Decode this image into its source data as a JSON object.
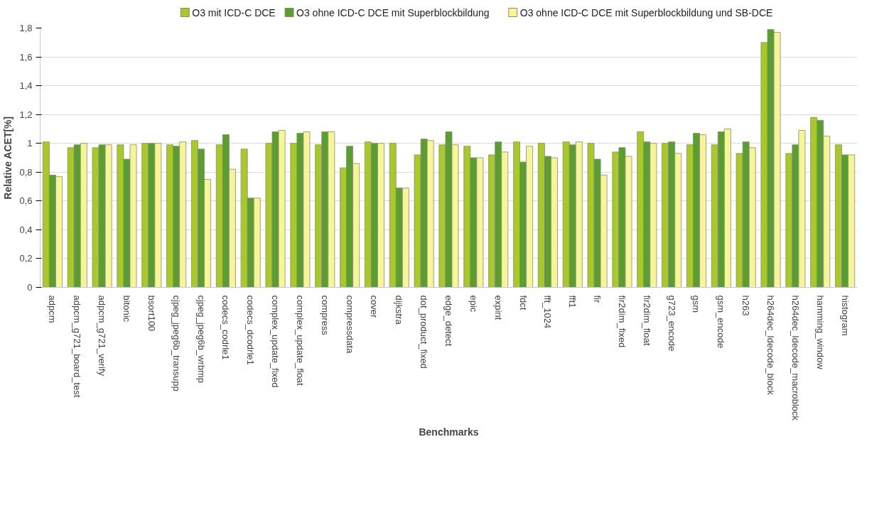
{
  "chart_data": {
    "type": "bar",
    "xlabel": "Benchmarks",
    "ylabel": "Relative ACET[%]",
    "categories": [
      "adpcm",
      "adpcm_g721_board_test",
      "adpcm_g721_verify",
      "bitonic",
      "bsort100",
      "cjpeg_jpeg6b_transupp",
      "cjpeg_jpeg6b_wrbmp",
      "codecs_codrle1",
      "codecs_dcodrle1",
      "complex_update_fixed",
      "complex_update_float",
      "compress",
      "compressdata",
      "cover",
      "dijkstra",
      "dot_product_fixed",
      "edge_detect",
      "epic",
      "expint",
      "fdct",
      "fft_1024",
      "fft1",
      "fir",
      "fir2dim_fixed",
      "fir2dim_float",
      "g723_encode",
      "gsm",
      "gsm_encode",
      "h263",
      "h264dec_ldecode_block",
      "h264dec_ldecode_macroblock",
      "hamming_window",
      "histogram"
    ],
    "series": [
      {
        "name": "O3 mit ICD-C DCE",
        "color": "#a9c92a",
        "values": [
          1.01,
          0.97,
          0.97,
          0.99,
          1.0,
          0.99,
          1.02,
          0.99,
          0.96,
          1.0,
          1.0,
          0.99,
          0.83,
          1.01,
          1.0,
          0.92,
          0.99,
          0.98,
          0.92,
          1.01,
          1.0,
          1.01,
          1.0,
          0.94,
          1.08,
          1.0,
          0.99,
          0.99,
          0.93,
          1.7,
          0.93,
          1.18,
          0.99
        ]
      },
      {
        "name": "O3 ohne ICD-C DCE mit Superblockbildung",
        "color": "#5a9e32",
        "values": [
          0.78,
          0.99,
          0.99,
          0.89,
          1.0,
          0.98,
          0.96,
          1.06,
          0.62,
          1.08,
          1.07,
          1.08,
          0.98,
          1.0,
          0.69,
          1.03,
          1.08,
          0.9,
          1.01,
          0.87,
          0.91,
          0.99,
          0.89,
          0.97,
          1.01,
          1.01,
          1.07,
          1.08,
          1.01,
          1.79,
          0.99,
          1.16,
          0.92
        ]
      },
      {
        "name": "O3 ohne ICD-C DCE mit Superblockbildung und SB-DCE",
        "color": "#f7f599",
        "values": [
          0.77,
          1.0,
          0.99,
          0.99,
          1.0,
          1.01,
          0.75,
          0.82,
          0.62,
          1.09,
          1.08,
          1.08,
          0.86,
          1.0,
          0.69,
          1.02,
          0.99,
          0.9,
          0.94,
          0.98,
          0.9,
          1.01,
          0.78,
          0.91,
          1.0,
          0.93,
          1.06,
          1.1,
          0.97,
          1.77,
          1.09,
          1.05,
          0.92
        ]
      }
    ],
    "ylim": [
      0,
      1.8
    ],
    "yticks": [
      0,
      {
        "value": 0.2,
        "label": "0,2"
      },
      {
        "value": 0.4,
        "label": "0,4"
      },
      {
        "value": 0.6,
        "label": "0,6"
      },
      {
        "value": 0.8,
        "label": "0,8"
      },
      1,
      {
        "value": 1.2,
        "label": "1,2"
      },
      {
        "value": 1.4,
        "label": "1,4"
      },
      {
        "value": 1.6,
        "label": "1,6"
      },
      {
        "value": 1.8,
        "label": "1,8"
      }
    ],
    "grid": "y",
    "legend": "top"
  }
}
